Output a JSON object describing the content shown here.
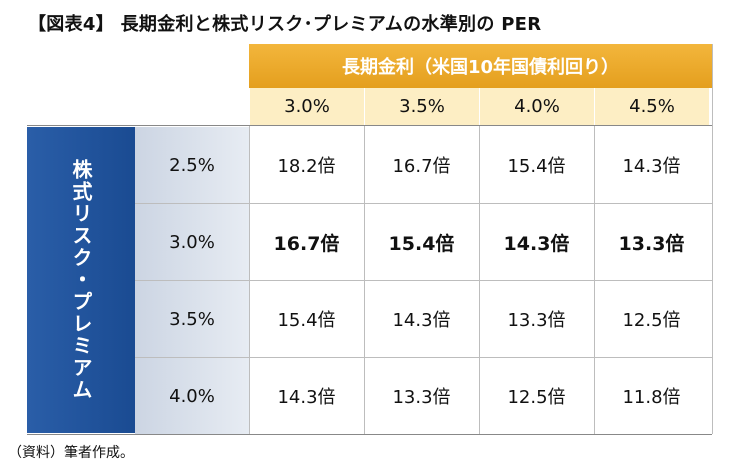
{
  "title": "【図表4】 長期金利と株式リスク･プレミアムの水準別の PER",
  "col_group_label": "長期金利（米国10年国債利回り）",
  "row_group_label": "株式リスク・プレミアム",
  "columns": [
    "3.0%",
    "3.5%",
    "4.0%",
    "4.5%"
  ],
  "rows": [
    {
      "label": "2.5%",
      "cells": [
        "18.2倍",
        "16.7倍",
        "15.4倍",
        "14.3倍"
      ],
      "emphasis": false
    },
    {
      "label": "3.0%",
      "cells": [
        "16.7倍",
        "15.4倍",
        "14.3倍",
        "13.3倍"
      ],
      "emphasis": true
    },
    {
      "label": "3.5%",
      "cells": [
        "15.4倍",
        "14.3倍",
        "13.3倍",
        "12.5倍"
      ],
      "emphasis": false
    },
    {
      "label": "4.0%",
      "cells": [
        "14.3倍",
        "13.3倍",
        "12.5倍",
        "11.8倍"
      ],
      "emphasis": false
    }
  ],
  "source": "（資料）筆者作成。",
  "colors": {
    "header_orange": "#e9a729",
    "header_light": "#fdeec4",
    "side_blue": "#1f53a0",
    "row_head_gray": "#d9e0ea"
  }
}
